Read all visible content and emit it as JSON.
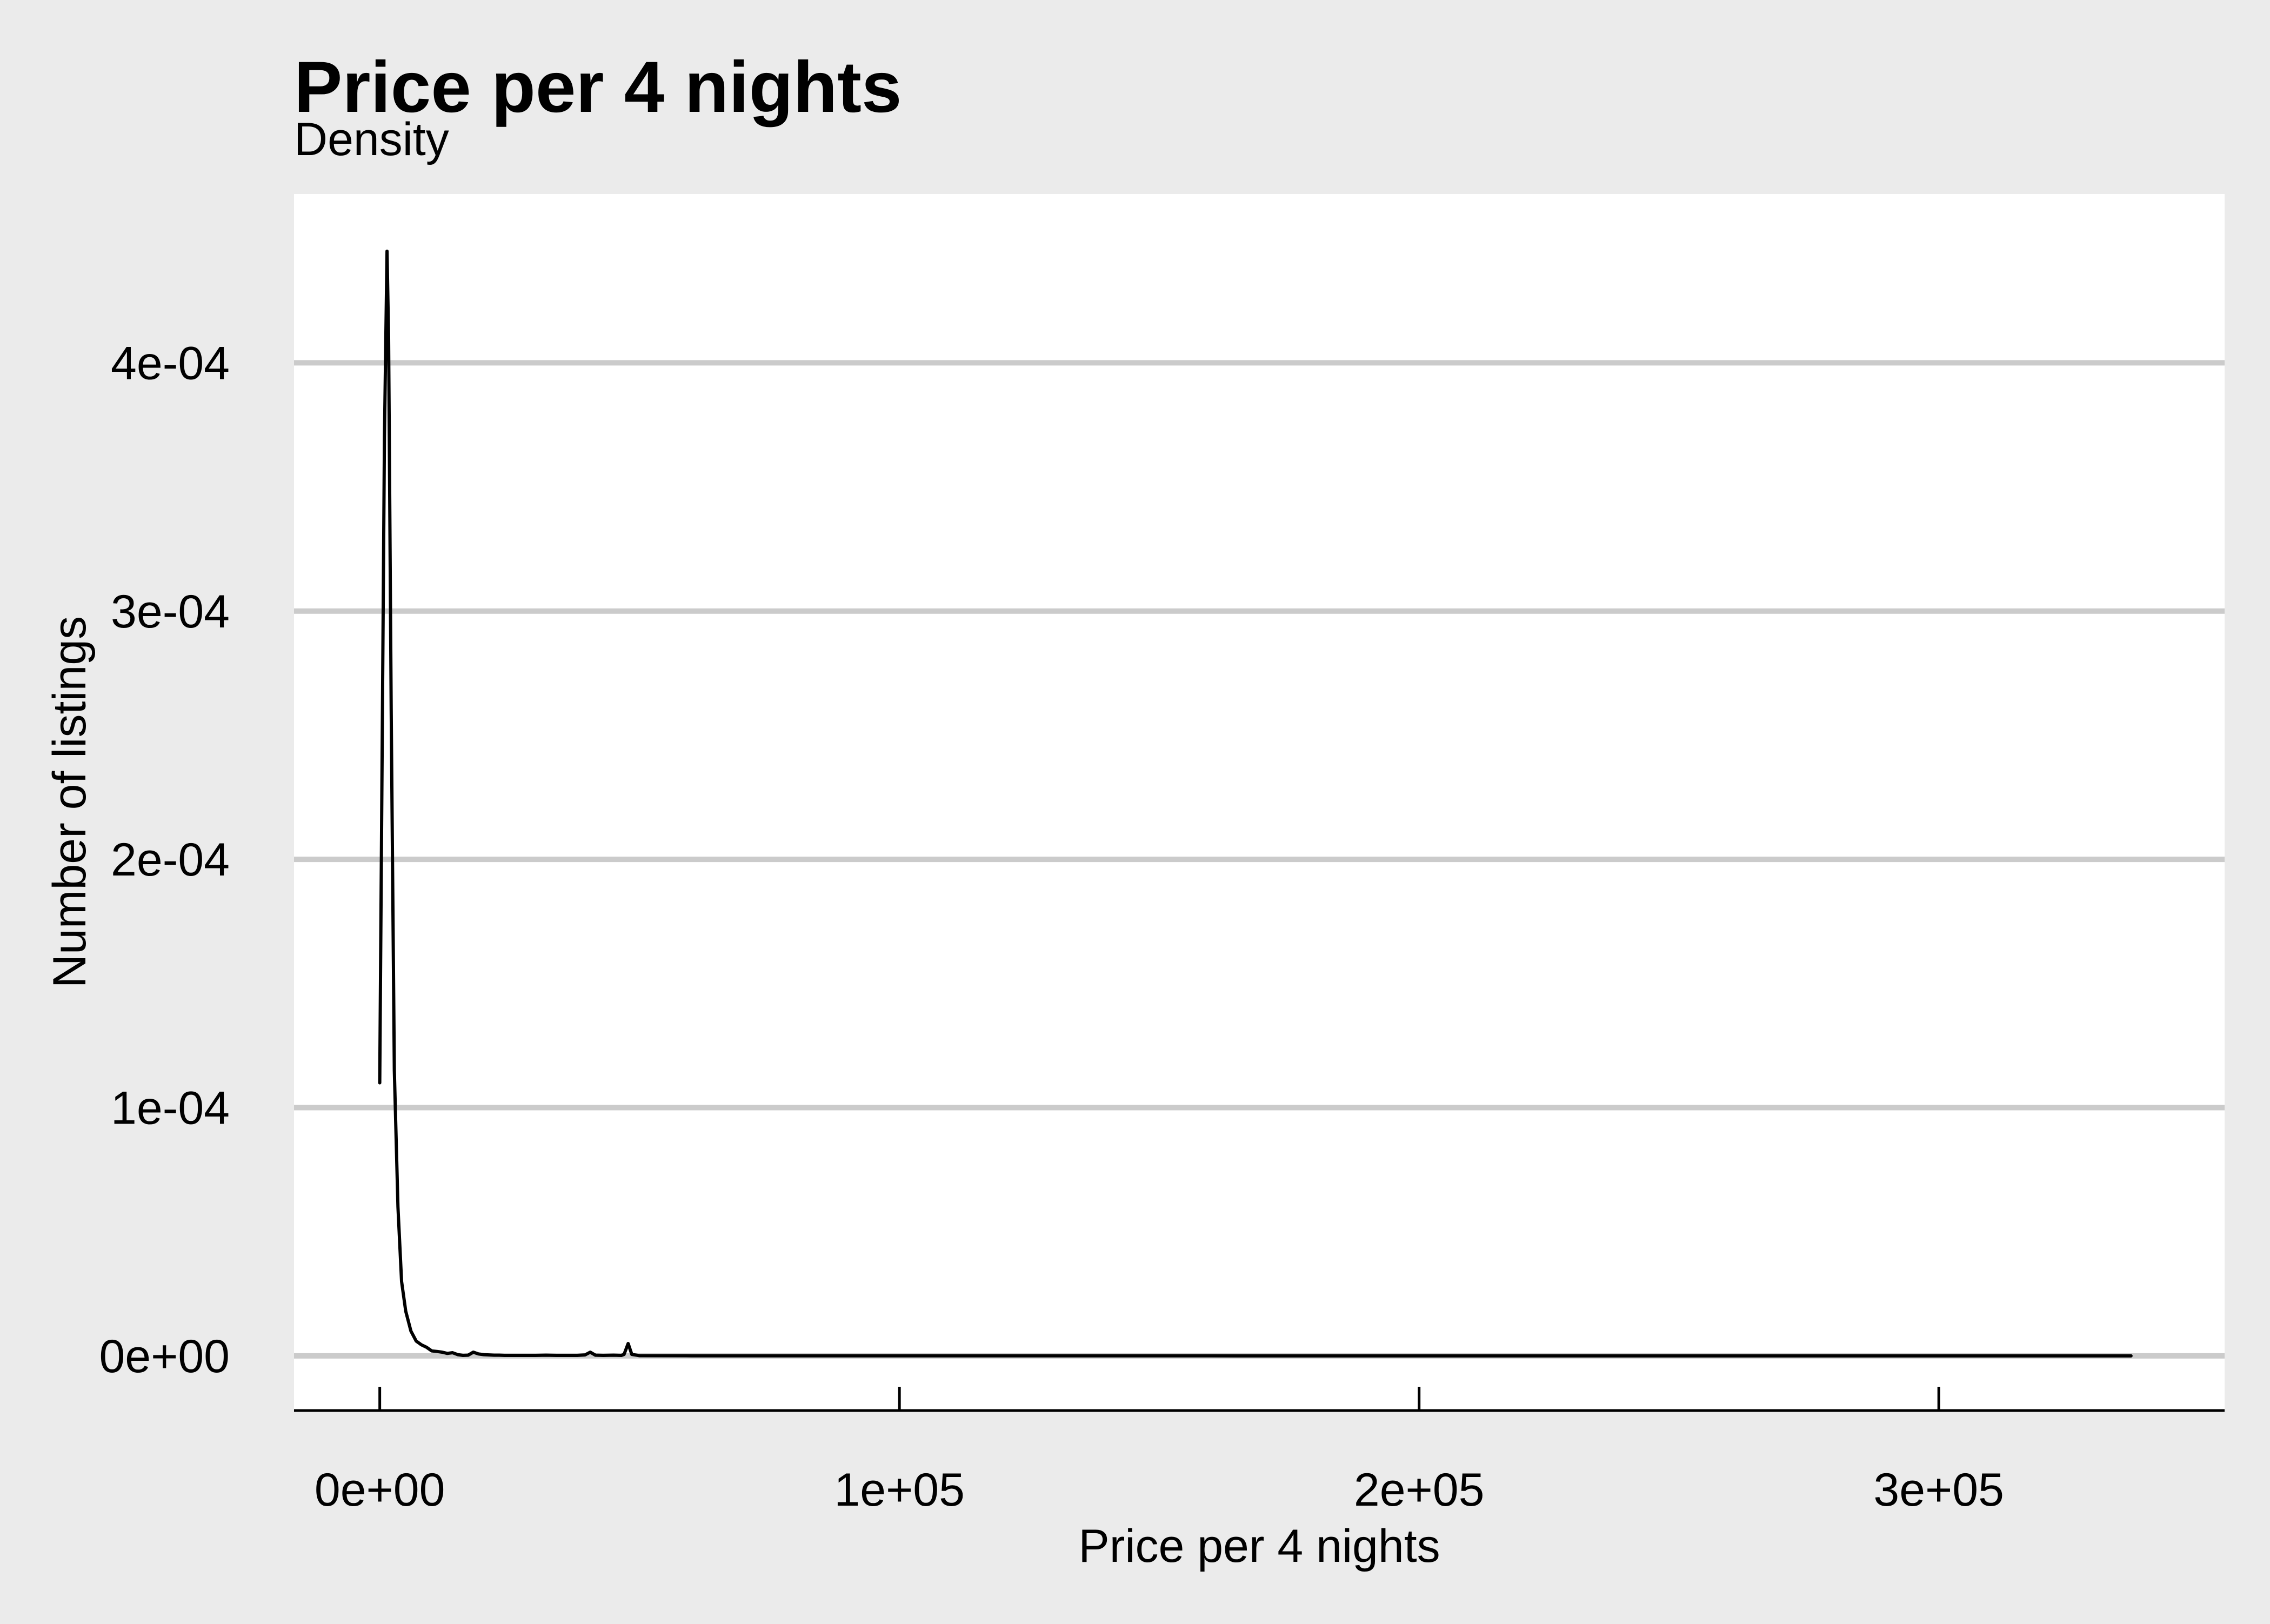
{
  "chart_data": {
    "type": "line",
    "title": "Price per 4 nights",
    "subtitle": "Density",
    "xlabel": "Price per 4 nights",
    "ylabel": "Number of listings",
    "xlim": [
      -16500,
      355000
    ],
    "ylim": [
      -2.2e-05,
      0.000468
    ],
    "x_ticks": [
      0,
      100000,
      200000,
      300000
    ],
    "x_tick_labels": [
      "0e+00",
      "1e+05",
      "2e+05",
      "3e+05"
    ],
    "y_ticks": [
      0,
      0.0001,
      0.0002,
      0.0003,
      0.0004
    ],
    "y_tick_labels": [
      "0e+00",
      "1e-04",
      "2e-04",
      "3e-04",
      "4e-04"
    ],
    "grid": "horizontal",
    "legend": "none",
    "colors": {
      "background": "#ebebeb",
      "panel": "#ffffff",
      "grid": "#cbcbcb",
      "line": "#000000",
      "axis": "#000000",
      "text": "#000000"
    },
    "series": [
      {
        "x": [
          0,
          900,
          1400,
          1700,
          2200,
          2800,
          3500,
          4200,
          5000,
          6000,
          7000,
          8000,
          9000,
          10000,
          11000,
          12000,
          13000,
          14000,
          15000,
          16000,
          17000,
          18000,
          19000,
          20000,
          21000,
          22000,
          23000,
          24000,
          26000,
          28000,
          30000,
          32000,
          34000,
          36000,
          38000,
          39500,
          40500,
          41500,
          43000,
          45000,
          46500,
          47000,
          47800,
          48500,
          50000,
          60000,
          80000,
          100000,
          120000,
          140000,
          160000,
          180000,
          200000,
          220000,
          240000,
          260000,
          280000,
          300000,
          320000,
          337000
        ],
        "y": [
          0.00011,
          0.00037,
          0.000445,
          0.00041,
          0.00026,
          0.000115,
          6e-05,
          3e-05,
          1.8e-05,
          1e-05,
          6e-06,
          4.5e-06,
          3.5e-06,
          2e-06,
          1.8e-06,
          1.5e-06,
          1e-06,
          1.3e-06,
          5e-07,
          2e-07,
          3e-07,
          1.5e-06,
          8e-07,
          5e-07,
          4e-07,
          3e-07,
          3e-07,
          2e-07,
          2e-07,
          2e-07,
          2e-07,
          3e-07,
          2e-07,
          2e-07,
          2e-07,
          4e-07,
          1.5e-06,
          3e-07,
          2e-07,
          3e-07,
          2e-07,
          6e-07,
          5e-06,
          6e-07,
          1e-07,
          5e-08,
          4e-08,
          3e-08,
          2e-08,
          2e-08,
          2e-08,
          1e-08,
          1e-08,
          1e-08,
          1e-08,
          1e-08,
          1e-08,
          1e-08,
          1e-08,
          0
        ]
      }
    ]
  }
}
